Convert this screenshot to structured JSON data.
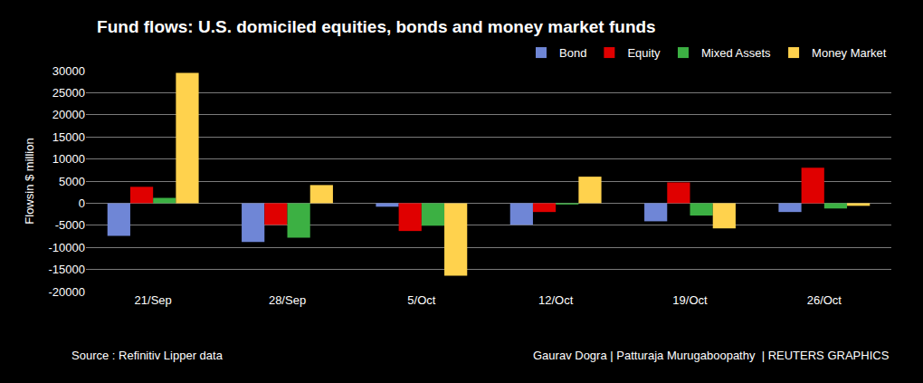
{
  "chart_data": {
    "type": "bar",
    "title": "Fund flows: U.S. domiciled equities, bonds and money market funds",
    "y_label": "Flowsin $ million",
    "source": "Source : Refinitiv Lipper data",
    "credit": "Gaurav Dogra | Patturaja Murugaboopathy  | REUTERS GRAPHICS",
    "categories": [
      "21/Sep",
      "28/Sep",
      "5/Oct",
      "12/Oct",
      "19/Oct",
      "26/Oct"
    ],
    "series": [
      {
        "name": "Bond",
        "color": "#6f86d6",
        "values": [
          -7400,
          -8800,
          -800,
          -4900,
          -4100,
          -2000
        ]
      },
      {
        "name": "Equity",
        "color": "#e00000",
        "values": [
          3700,
          -4900,
          -6300,
          -2000,
          4700,
          8000
        ]
      },
      {
        "name": "Mixed Assets",
        "color": "#3cb043",
        "values": [
          1200,
          -7800,
          -5100,
          -300,
          -2800,
          -1200
        ]
      },
      {
        "name": "Money Market",
        "color": "#ffd24d",
        "values": [
          29500,
          4100,
          -16400,
          6000,
          -5700,
          -600
        ]
      }
    ],
    "ylim": [
      -20000,
      30000
    ],
    "yticks": [
      -20000,
      -15000,
      -10000,
      -5000,
      0,
      5000,
      10000,
      15000,
      20000,
      25000,
      30000
    ],
    "grid": true,
    "legend": "top-right"
  }
}
